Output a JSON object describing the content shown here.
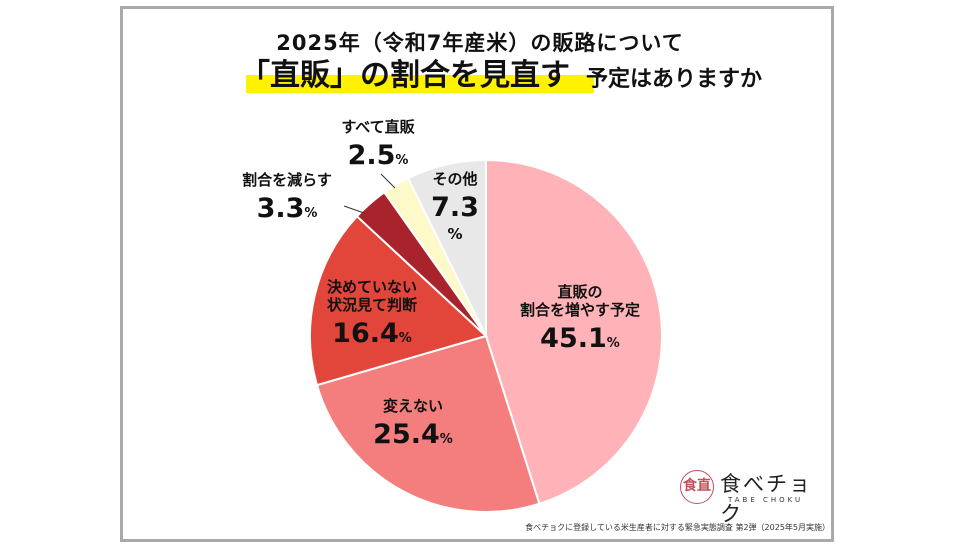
{
  "title": {
    "line1": "2025年（令和7年産米）の販路について",
    "line2_main": "「直販」の割合を見直す",
    "line2_sub": "予定はありますか"
  },
  "chart_data": {
    "type": "pie",
    "unit": "%",
    "start_angle_deg": 0,
    "direction": "clockwise",
    "slices": [
      {
        "label": "直販の割合を増やす予定",
        "lines": [
          "直販の",
          "割合を増やす予定"
        ],
        "value": 45.1,
        "value_text": "45.1",
        "color": "#ffb3b8"
      },
      {
        "label": "変えない",
        "lines": [
          "変えない"
        ],
        "value": 25.4,
        "value_text": "25.4",
        "color": "#f47e7e"
      },
      {
        "label": "決めていない状況見て判断",
        "lines": [
          "決めていない",
          "状況見て判断"
        ],
        "value": 16.4,
        "value_text": "16.4",
        "color": "#e2453a"
      },
      {
        "label": "割合を減らす",
        "lines": [
          "割合を減らす"
        ],
        "value": 3.3,
        "value_text": "3.3",
        "color": "#a8232b"
      },
      {
        "label": "すべて直販",
        "lines": [
          "すべて直販"
        ],
        "value": 2.5,
        "value_text": "2.5",
        "color": "#fdf9c9"
      },
      {
        "label": "その他",
        "lines": [
          "その他"
        ],
        "value": 7.3,
        "value_text": "7.3",
        "color": "#e8e8e8"
      }
    ]
  },
  "logo": {
    "name": "食べチョク",
    "sub": "TABE CHOKU",
    "mark": "食直"
  },
  "footnote": "食べチョクに登録している米生産者に対する緊急実態調査 第2弾（2025年5月実施）"
}
